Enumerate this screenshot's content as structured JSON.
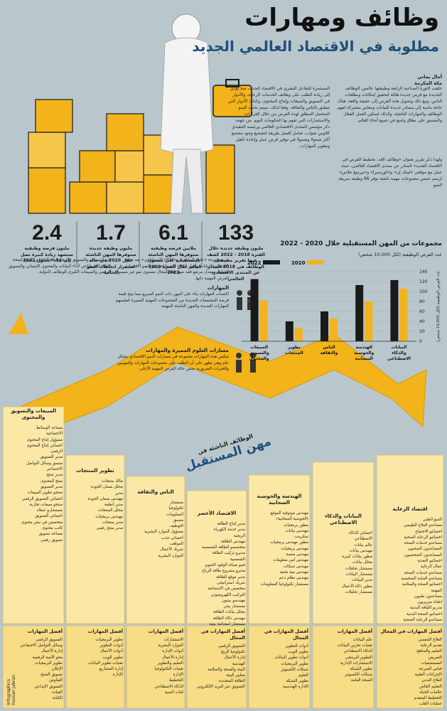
{
  "header": {
    "title": "وظائف ومهارات",
    "subtitle": "مطلوبة في الاقتصاد العالمي الجديد",
    "author": "أمال يماني",
    "source": "مكة المكرمة"
  },
  "paragraphs": {
    "p1": "خلقت الثورة الصناعية الرابعة وطبيعتها عالمين الوظائف الجديدة مع فرص جديدة هائلة لتحقيق إمكانات ونطلعات الناس، ومع ذلك وتحويل هذه الفرص إلى حقيقة واقعة، هناك حاجة ماسة إلى مصادر جديدة للبيانات ومعايير مشتركة لفهم الوظائف والمهارات الناشئة، وكذلك لتمكين العمل الفعال والمنسق على نطاق واسع في جميع أنحاء العالم.",
    "p2": "المستمرة للتفاعل البشري في الاقتصاد الجديد، مما يؤدي إلى زيادة الطلب على وظائف الخدمات الرعاية، والأدوار في التسويق والمبيعات وإنتاج المحتوى، وكذلك الأدوار التي تنطبق بالناس والثقافة. وفقا لذلك، سيتم تحديد النمو المحتمل المطلق لهذه الفرص من خلال القرارات والاستثمارات التي تقوم بها الحكومات اليوم. من جهته، ذكر مؤسس المنتدى الاقتصادي العالمي ورئيسه التنفيذي كلاوس شواب، شامل أفضل طريقة لتشجيع وجود مجتمع أكثر شمولا وشمولا في توفير فرص عمل وإعادة تأهيل وتطوير المهارات.",
    "p3": "ولهذا ذكر تقرير بعنوان «وظائف الغد: تخطيط الفرص في الاقتصاد الجديد» الصادر عن منتدى الاقتصاد العالمي، حيث عمل مع موقعي «لينكد إن» و«كورسيرا» و«بيرنينغ جلاس» لرسم خمس مجموعات مهنية ناشئة توفر 96 وظيفة سريعة النمو."
  },
  "stats": [
    {
      "value": "133",
      "text": "مليون وظيفة جديدة خلال الفترة 2018 - 2022 كشف عنها تقرير مستقبل الوظائف في 2018 الصادر عن المنتدى الاقتصادي العالمي"
    },
    {
      "value": "6.1",
      "text": "ملايين فرصة وظيفية ستوفرها المهن الناشئة المستقبلية على مستوى العالم خلال الفترة 2020 - 2022"
    },
    {
      "value": "1.7",
      "text": "مليون وظيفة جديدة ستوفرها المهن الناشئة خلال 2020 في حالة استمرار اتجاهات النمو الحالية"
    },
    {
      "value": "2.4",
      "text": "مليون فرصة وظيفية ستشهد زيادة كبيرة تصل إلى 51% بحلول 2022"
    }
  ],
  "side_blocks": {
    "block1": "في مجموعة «علوم البيانات» و«الذكاء الاصطناعي» يعد تجمع الأخصائي البيانات وأدوار الذكاء الاصطناعي هو النمو الاقتصادي الشامل بمعدل مرتفع فقد شهد هذا المجال مستوى نمو غير مسبوق الفرص المهنية ذاتها.",
    "block2": "في المبيعات والتسويق والمحتوى، هناك فرص كبيرة لمنحة الذكاء الاصطناعي لأداء البيانات والمحتوى الإنساني والتسويق الرقمي والمبيعات الكبرى للوظائف الدولية."
  },
  "skills_blocks": {
    "s1_head": "المهارات",
    "s1_text": "اكتساب المهارات بناء على المهن ذات النمو السريع مما يتيح قيمة فرصة المجتمعات الجديدة من المجموعات المهنية المميزة لتعليمهم المهارات العديدة والمهن الناشئة المهنية.",
    "s2_head": "مسارات العلوم المميزة والمهارات",
    "s2_text": "تعكس هذه المهارات مجموعة في مسارات النمو الاقتصادي بشكل عام وهي تظهر على أن الطلب على مجموعات المهارات والمهنيين والخبرات الضرورية ضمن حالة الفرص المهنية الأعلى."
  },
  "chart_data": {
    "type": "bar",
    "title": "مجموعات من المهن المستقبلية خلال 2020 - 2022",
    "ylabel": "عدد الفرص الوظيفية (لكل 10,000 شخص)",
    "ylim": [
      0,
      140
    ],
    "yticks": [
      0,
      20,
      40,
      60,
      80,
      100,
      120,
      140
    ],
    "categories": [
      "البيانات والذكاء الاصطناعي",
      "الهندسة والحوسبة السحابية",
      "الناس والثقافة",
      "تطوير المنتجات",
      "المبيعات والتسويق والمحتوى"
    ],
    "series": [
      {
        "name": "2020",
        "color": "#f2b31b",
        "values": [
          106,
          80,
          46,
          27,
          82
        ]
      },
      {
        "name": "2022",
        "color": "#1a1a1a",
        "values": [
          123,
          113,
          60,
          40,
          125
        ]
      }
    ],
    "legend": "top-left"
  },
  "arrow": {
    "line1": "الوظائف الناشئة في",
    "line2": "مهن المستقبل"
  },
  "columns": [
    {
      "head": "اقتصاد الرعاية",
      "items": [
        "التنبؤ الطبي",
        "مساعدو العلاج الطبيعي",
        "اخصائيو الاجتماع",
        "اخصائيو الرعاية الصحية",
        "مساعدو خدمات الصحة",
        "المساعدون الصحيون",
        "المساعدون الشخصيون",
        "اخصائيو التغذية",
        "عمال الرعاية",
        "مساعدو خدمات الصحة",
        "مساعدو العناية الشخصية",
        "اخصائيو الصحة والسلامة",
        "المهنية",
        "مساعدون طبيون",
        "اطباء سريريون",
        "مدربو اللياقة البدنية",
        "اخصائيو الصحة البدنية",
        "مساعدو الرعاية الصحية"
      ]
    },
    {
      "head": "البيانات والذكاء الاصطناعي",
      "items": [
        "اخصائي الذكاء",
        "الاصطناعي",
        "عالم بيانات",
        "مهندس بيانات",
        "مطور بيانات كبيرة",
        "محلل بيانات",
        "مستشار تحليلات",
        "مستشار البيانات",
        "مدير البيانات",
        "مطور ذكاء الأعمال",
        "مستشار تحليلات"
      ]
    },
    {
      "head": "الهندسة والحوسبة السحابية",
      "items": [
        "مهندس موثوقية الموقع",
        "(الحوسبة السحابية)",
        "مطور برمجيات",
        "مهندس بيانات",
        "سكريبت",
        "مطور مهندس برمجيات",
        "مهندس برمجيات",
        "مهندس منصة",
        "مهندس أمن معلومات",
        "مهندس شبكات",
        "مهندس بنية تحتية",
        "مهندس نظام دعم",
        "مستشار تكنولوجيا المعلومات"
      ]
    },
    {
      "head": "الاقتصاد الأخضر",
      "items": [
        "مدير إنتاج الطاقة",
        "مدير خدمة الكهرباء",
        "الريحية",
        "مهندس الطاقة",
        "متخصصو الطاقة الشمسية",
        "مديرو تركيب الطاقة",
        "الشمسية",
        "فنيو صيانة الوقود الحيوي",
        "مديرو مشروع طاقة الرياح",
        "مدير موقع الطاقة",
        "شريك استراتيجي",
        "متخصص في الاستدامة",
        "التركيب الكهروضوئي",
        "مهندسو بيئيون",
        "مستشار بيئي",
        "محلل بيانات الطاقة",
        "مهندس ذكاء الطاقة",
        "مستشار استدامة بيئية"
      ]
    },
    {
      "head": "الناس والثقافة",
      "items": [
        "مستشار",
        "تكنولوجيا",
        "المعلومات",
        "منسق",
        "التوظيف",
        "مسؤول الموارد البشرية",
        "أخصائي جذب",
        "المواهب",
        "شريك الأعمال",
        "الموارد البشرية"
      ]
    },
    {
      "head": "تطوير المنتجات",
      "items": [
        "مالك منتجات",
        "محلل ضمان الجودة",
        "مدير",
        "مهندس ضمان الجودة",
        "مدير أنظمة",
        "محلل المنتجات",
        "مهندس برمجيات",
        "مدير منتجات",
        "مدير منتج رقمي"
      ]
    },
    {
      "head": "المبيعات والتسويق والمحتوى",
      "items": [
        "مساعد الوسائط",
        "الاجتماعية",
        "مسؤول إنتاج المحتوى",
        "اخصائي إنتاج المحتوى",
        "الرقمي",
        "مدير التسويق",
        "منسق وسائل التواصل",
        "الاجتماعي",
        "مدير منتج",
        "منتج المحتوى",
        "مدير التسويق",
        "منتجو تطوير المبيعات",
        "اخصائي التسويق الرقمي",
        "منتجو مبيعات تجارية",
        "مستشارو عملاء",
        "اخصائي التسويق",
        "متخصص في نشر محتوى",
        "كاتب محتوى",
        "مساعد تسويق",
        "تسويق رقمي"
      ]
    }
  ],
  "skills": [
    {
      "head": "أفضل المهارات في المجال",
      "items": [
        "العلاج التنفسي",
        "تقديم الرعاية",
        "التعليم والمناهج",
        "التمريض",
        "المستشفيات",
        "قياس السرعة",
        "الإجراءات الطبية",
        "العلاج البدني",
        "التعليم الخاص",
        "علامات الحياة",
        "التخطيط المتقدم",
        "عمليات القلب"
      ]
    },
    {
      "head": "أفضل المهارات",
      "items": [
        "علم البيانات",
        "تقنيات تخزين البيانات",
        "الذكاء الاصطناعي",
        "التطوير البرمجي",
        "الاستشارات الإدارية",
        "تطوير الشبكة",
        "شبكات الكمبيوتر",
        "الصحة العامة"
      ]
    },
    {
      "head": "أفضل المهارات في المجال",
      "items": [
        "أدوات التطوير",
        "تطوير الويب",
        "أدوات تطوير البيانات",
        "تطوير البرمجيات",
        "شبكات الكمبيوتر",
        "العلوم",
        "تطوير الشبكة",
        "الإدارة الهندسية"
      ]
    },
    {
      "head": "أفضل المهارات في المجال",
      "items": [
        "التسويق الرقمي",
        "تكنولوجيا الريح",
        "إدارة الأعمال",
        "الهندسة",
        "البيئة والصحة والسلامة",
        "معايير البيئة",
        "الطاقة المتجددة",
        "التسويق عبر البريد الإلكتروني"
      ]
    },
    {
      "head": "أفضل المهارات",
      "items": [
        "الاستشارات",
        "الموارد البشرية",
        "أدوات الإدارة",
        "إدارة الأعمال",
        "التعليم والتطوير",
        "تقنيات التكنولوجيا",
        "الإدارة",
        "التخطيط",
        "الذكاء الاصطناعي",
        "لغات أجنبية"
      ]
    },
    {
      "head": "أفضل المهارات",
      "items": [
        "تطوير البرمجيات",
        "أدوات التطوير",
        "أدوات الأعمال",
        "تطوير الويب",
        "تقنيات تطوير البيانات",
        "إدارة المشاريع",
        "الإدارة"
      ]
    },
    {
      "head": "أفضل المهارات",
      "items": [
        "التسويق الرقمي",
        "وسائل التواصل الاجتماعي",
        "إدارة الأعمال",
        "محو الأمية الرقمية",
        "تطوير البرمجيات",
        "الإعلان",
        "تسويق المنتج",
        "التفاوض",
        "التسويق الإبداعي",
        "القيادة",
        "الكتابة"
      ]
    }
  ],
  "credit": {
    "brand": "Infographics",
    "name": "Hassan Jabran"
  }
}
